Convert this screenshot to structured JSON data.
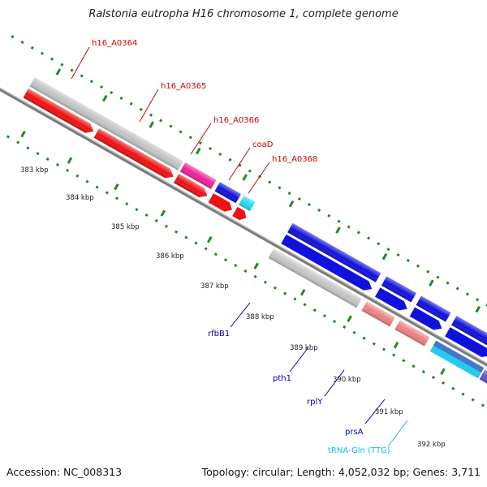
{
  "title": "Ralstonia eutropha H16 chromosome 1, complete genome",
  "accession_text": "Accession: NC_008313",
  "summary_text": "Topology: circular; Length: 4,052,032 bp; Genes: 3,711",
  "colors": {
    "grey_gene": "#c4c4c4",
    "red_cds": "#ee1111",
    "magenta": "#ee2299",
    "blue_cds": "#1111dd",
    "cyan": "#22ddee",
    "pink": "#ee8080",
    "purple": "#6655cc",
    "olive": "#668822",
    "green_dots": "#228822",
    "label_red": "#cc0000",
    "label_blue": "#0000aa",
    "label_cyan": "#11bbdd"
  },
  "ticks": [
    "383 kbp",
    "384 kbp",
    "385 kbp",
    "386 kbp",
    "387 kbp",
    "388 kbp",
    "389 kbp",
    "390 kbp",
    "391 kbp",
    "392 kbp"
  ],
  "labels": {
    "h16_A0364": "h16_A0364",
    "h16_A0365": "h16_A0365",
    "h16_A0366": "h16_A0366",
    "coaD": "coaD",
    "h16_A0368": "h16_A0368",
    "rfbB1": "rfbB1",
    "pth1": "pth1",
    "rplY": "rplY",
    "prsA": "prsA",
    "tRNA_Gln": "tRNA-Gln (TTG)"
  }
}
